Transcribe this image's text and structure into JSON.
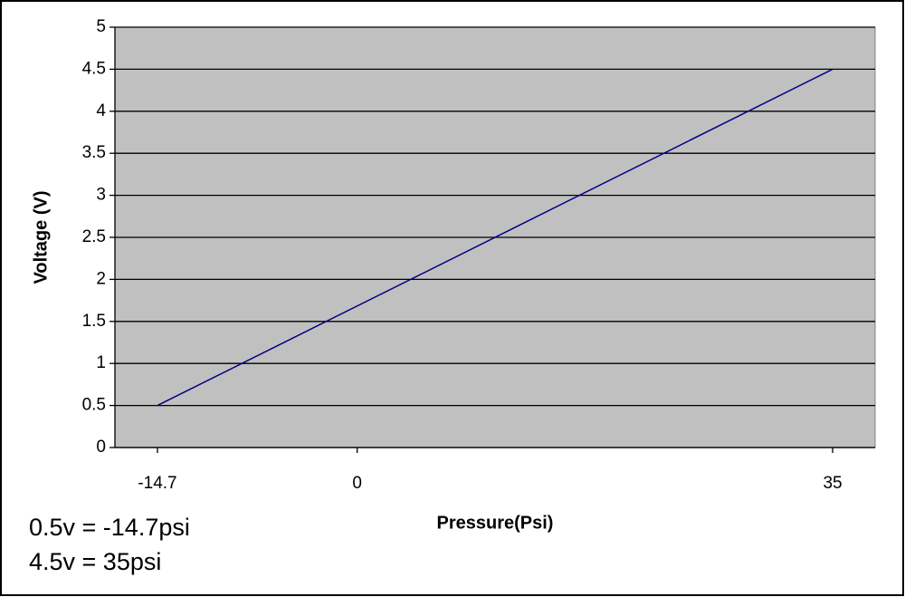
{
  "chart_data": {
    "type": "line",
    "x_label": "Pressure(Psi)",
    "y_label": "Voltage (V)",
    "x": [
      -14.7,
      35
    ],
    "series": [
      {
        "color": "#000080",
        "values": [
          0.5,
          4.5
        ]
      }
    ],
    "xlim": [
      -17.83,
      38.13
    ],
    "xticks": [
      -14.7,
      0,
      35
    ],
    "ylim": [
      0,
      5
    ],
    "yticks": [
      0,
      0.5,
      1,
      1.5,
      2,
      2.5,
      3,
      3.5,
      4,
      4.5,
      5
    ],
    "grid": true,
    "plot_background": "#c0c0c0",
    "annotations": [
      "0.5v = -14.7psi",
      "4.5v = 35psi"
    ]
  }
}
